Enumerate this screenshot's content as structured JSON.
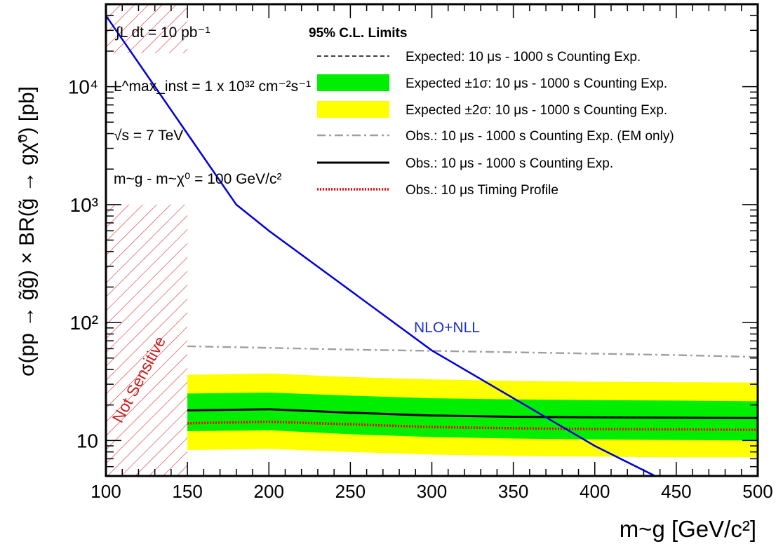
{
  "chart_data": {
    "type": "line",
    "title": "",
    "xlabel": "m~g [GeV/c²]",
    "ylabel": "σ(pp → g̃g̃) × BR(g̃ → gχ̃⁰) [pb]",
    "xlim": [
      100,
      500
    ],
    "ylim": [
      5,
      50000
    ],
    "y_scale": "log",
    "x_ticks": [
      "100",
      "150",
      "200",
      "250",
      "300",
      "350",
      "400",
      "450",
      "500"
    ],
    "y_ticks": [
      {
        "value": 10,
        "label": "10"
      },
      {
        "value": 100,
        "label": "10²"
      },
      {
        "value": 1000,
        "label": "10³"
      },
      {
        "value": 10000,
        "label": "10⁴"
      }
    ],
    "legend_title": "95% C.L. Limits",
    "legend_position": "top-right",
    "annotations": {
      "lumi_int": "∫L dt = 10 pb⁻¹",
      "lumi_inst": "L^max_inst = 1 x 10³² cm⁻²s⁻¹",
      "sqrt_s": "√s = 7 TeV",
      "mass_diff": "m~g - m~χ⁰ = 100 GeV/c²",
      "theory_label": "NLO+NLL",
      "excluded_region_label": "Not Sensitive"
    },
    "excluded_region": {
      "x": [
        100,
        150
      ],
      "ymax": 1000
    },
    "series": [
      {
        "name": "Expected: 10 μs - 1000 s Counting Exp.",
        "style": "dashed",
        "color": "#000000",
        "x": [
          150,
          200,
          250,
          300,
          350,
          400,
          450,
          500
        ],
        "y": [
          18,
          18.3,
          17.2,
          16.3,
          15.9,
          15.7,
          15.6,
          15.5
        ]
      },
      {
        "name": "Expected ±1σ: 10 μs - 1000 s Counting Exp.",
        "style": "band",
        "color": "#00ee00",
        "x": [
          150,
          200,
          250,
          300,
          350,
          400,
          450,
          500
        ],
        "low": [
          12,
          12.2,
          11.3,
          10.7,
          10.4,
          10.2,
          10.1,
          10
        ],
        "high": [
          25,
          25.5,
          24,
          22.8,
          22.3,
          22,
          21.8,
          21.5
        ]
      },
      {
        "name": "Expected ±2σ: 10 μs - 1000 s Counting Exp.",
        "style": "band",
        "color": "#ffff00",
        "x": [
          150,
          200,
          250,
          300,
          350,
          400,
          450,
          500
        ],
        "low": [
          8.3,
          8.5,
          8,
          7.6,
          7.4,
          7.3,
          7.2,
          7.2
        ],
        "high": [
          36,
          37,
          34.5,
          33,
          32,
          31.5,
          31.2,
          31
        ]
      },
      {
        "name": "Obs.: 10 μs - 1000 s Counting Exp. (EM only)",
        "style": "dashdot",
        "color": "#a0a0a0",
        "x": [
          150,
          200,
          250,
          300,
          350,
          400,
          450,
          500
        ],
        "y": [
          63,
          61,
          59,
          57.5,
          56,
          54.5,
          53,
          51
        ]
      },
      {
        "name": "Obs.: 10 μs - 1000 s Counting Exp.",
        "style": "solid",
        "color": "#000000",
        "x": [
          150,
          200,
          250,
          300,
          350,
          400,
          450,
          500
        ],
        "y": [
          18,
          18.4,
          17.2,
          16.3,
          15.9,
          15.7,
          15.6,
          15.5
        ]
      },
      {
        "name": "Obs.: 10 μs Timing Profile",
        "style": "dotted",
        "color": "#ff0000",
        "x": [
          150,
          200,
          250,
          300,
          350,
          400,
          450,
          500
        ],
        "y": [
          14,
          14.4,
          13.7,
          13,
          12.7,
          12.5,
          12.4,
          12.3
        ]
      },
      {
        "name": "NLO+NLL",
        "style": "theory",
        "color": "#0000dd",
        "x": [
          100,
          180,
          200,
          300,
          400,
          437
        ],
        "y": [
          40000,
          1000,
          600,
          58,
          9,
          5
        ]
      }
    ]
  }
}
